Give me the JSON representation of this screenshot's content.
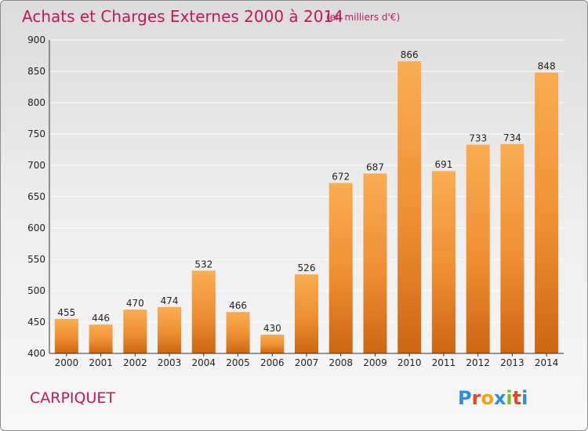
{
  "chart_data": {
    "type": "bar",
    "title": "Achats et Charges Externes 2000 à 2014",
    "subtitle": "(en milliers d'€)",
    "categories": [
      "2000",
      "2001",
      "2002",
      "2003",
      "2004",
      "2005",
      "2006",
      "2007",
      "2008",
      "2009",
      "2010",
      "2011",
      "2012",
      "2013",
      "2014"
    ],
    "values": [
      455,
      446,
      470,
      474,
      532,
      466,
      430,
      526,
      672,
      687,
      866,
      691,
      733,
      734,
      848
    ],
    "ylim": [
      400,
      900
    ],
    "yticks": [
      400,
      450,
      500,
      550,
      600,
      650,
      700,
      750,
      800,
      850,
      900
    ],
    "grid": true,
    "legend": "none",
    "xlabel": "",
    "ylabel": ""
  },
  "place": "CARPIQUET",
  "logo": "Proxiti",
  "colors": {
    "title": "#c2185b",
    "bar_light": "#f7a94a",
    "bar_dark": "#cf6a14"
  }
}
